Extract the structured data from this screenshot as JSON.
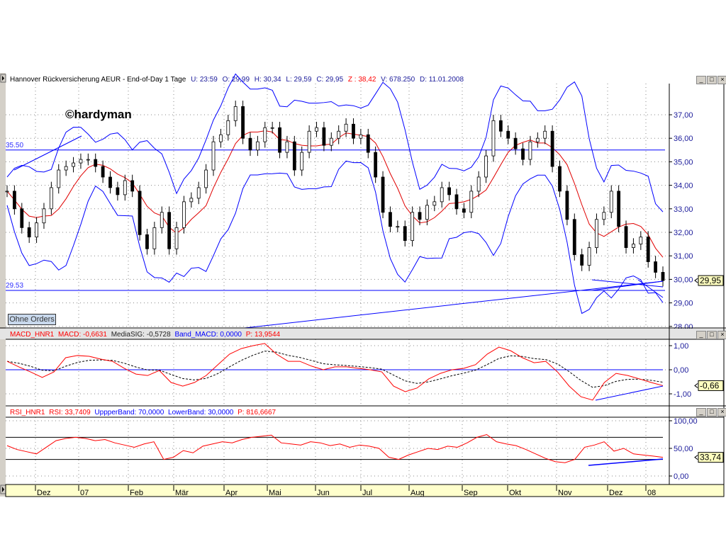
{
  "title_bar": {
    "name": "Hannover Rückversicherung AEUR - End-of-Day 1 Tage",
    "u": "U: 23:59",
    "o": "O: 29,99",
    "h": "H: 30,34",
    "l": "L: 29,59",
    "c": "C: 29,95",
    "z": "Z : 38,42",
    "v": "V: 678.250",
    "d": "D: 11.01.2008"
  },
  "watermark": "©hardyman",
  "ohne_orders_label": "Ohne Orders",
  "colors": {
    "price_line": "#0000ff",
    "ma": "#e00000",
    "macd": "#ff0000",
    "signal": "#000000",
    "axis_text": "#1a1a9a",
    "xaxis_bg": "#ffffcc"
  },
  "chart_data": [
    {
      "type": "candlestick",
      "panel": "price",
      "yticks": [
        "37,00",
        "36,00",
        "35,00",
        "34,00",
        "33,00",
        "32,00",
        "31,00",
        "30,00",
        "29,00",
        "28,00"
      ],
      "ylim": [
        28,
        37.3
      ],
      "horizontal_lines": [
        {
          "label": "35.50",
          "value": 35.5
        },
        {
          "label": "29.53",
          "value": 29.53
        }
      ],
      "last_value_label": "29,95",
      "overlays": [
        "moving-average",
        "bollinger-bands"
      ],
      "close": [
        33.75,
        33.0,
        32.2,
        31.8,
        32.4,
        33.0,
        33.9,
        34.65,
        34.8,
        34.95,
        35.1,
        35.1,
        34.8,
        34.35,
        33.9,
        33.6,
        34.2,
        33.75,
        31.9,
        31.3,
        32.2,
        32.85,
        31.3,
        32.2,
        33.3,
        33.45,
        33.9,
        34.65,
        35.85,
        36.15,
        36.75,
        37.35,
        36.0,
        35.5,
        35.85,
        36.45,
        36.45,
        35.4,
        35.85,
        34.65,
        35.4,
        36.3,
        36.45,
        35.7,
        36.0,
        36.3,
        36.6,
        36.0,
        36.15,
        35.4,
        34.35,
        32.85,
        32.25,
        32.25,
        31.65,
        32.85,
        32.55,
        33.15,
        33.3,
        33.9,
        33.6,
        33.0,
        32.85,
        33.75,
        34.35,
        35.25,
        36.75,
        36.3,
        36.0,
        35.55,
        35.1,
        35.85,
        36.0,
        36.3,
        34.8,
        33.75,
        32.55,
        31.05,
        30.6,
        31.35,
        32.55,
        32.85,
        33.75,
        32.25,
        31.35,
        31.5,
        31.8,
        30.75,
        30.3,
        29.95
      ]
    },
    {
      "type": "line",
      "panel": "macd",
      "header": {
        "name": "MACD_HNR1",
        "macd": "MACD: -0,6631",
        "sig": "MediaSIG: -0,5728",
        "band": "Band_MACD: 0,0000",
        "p": "P: 13,9544"
      },
      "yticks": [
        "1,00",
        "0,00",
        "-1,00"
      ],
      "ylim": [
        -1.5,
        1.3
      ],
      "band_value": 0,
      "last_value_label": "-0,66",
      "macd": [
        0.35,
        0.12,
        -0.09,
        -0.32,
        -0.09,
        0.5,
        0.59,
        0.56,
        0.44,
        0.35,
        0.06,
        -0.18,
        -0.24,
        -0.03,
        -0.53,
        -0.68,
        -0.53,
        -0.24,
        0.21,
        0.65,
        0.88,
        1.0,
        1.09,
        0.65,
        0.35,
        0.35,
        0.15,
        0.0,
        0.12,
        0.12,
        0.06,
        0.0,
        -0.09,
        -0.68,
        -0.91,
        -0.76,
        -0.38,
        -0.15,
        0.0,
        0.06,
        0.21,
        0.65,
        0.94,
        0.79,
        0.5,
        0.29,
        0.35,
        -0.09,
        -0.68,
        -1.12,
        -1.26,
        -0.53,
        -0.15,
        -0.24,
        -0.38,
        -0.53,
        -0.66
      ]
    },
    {
      "type": "line",
      "panel": "rsi",
      "header": {
        "name": "RSI_HNR1",
        "rsi": "RSI: 33,7409",
        "upper": "UppperBand: 70,0000",
        "lower": "LowerBand: 30,0000",
        "p": "P: 816,6667"
      },
      "yticks": [
        "100,00",
        "50,00",
        "0,00"
      ],
      "ylim": [
        -5,
        102
      ],
      "upper_band": 70,
      "lower_band": 30,
      "last_value_label": "33,74",
      "rsi": [
        55,
        48,
        44,
        40,
        52,
        64,
        68,
        70,
        68,
        64,
        66,
        60,
        56,
        52,
        58,
        62,
        30,
        34,
        46,
        42,
        54,
        58,
        62,
        60,
        66,
        70,
        72,
        74,
        60,
        58,
        56,
        62,
        60,
        55,
        58,
        52,
        56,
        54,
        50,
        34,
        30,
        38,
        44,
        50,
        48,
        54,
        52,
        60,
        70,
        75,
        62,
        58,
        55,
        48,
        40,
        32,
        26,
        24,
        30,
        52,
        56,
        62,
        45,
        50,
        40,
        38,
        36,
        33.74
      ]
    }
  ],
  "x_axis": {
    "months": [
      "Dez",
      "07",
      "Feb",
      "Mär",
      "Apr",
      "Mai",
      "Jun",
      "Jul",
      "Aug",
      "Sep",
      "Okt",
      "Nov",
      "Dez",
      "08"
    ]
  },
  "window_buttons": {
    "minimize": "_",
    "maximize": "□",
    "close": "×"
  }
}
